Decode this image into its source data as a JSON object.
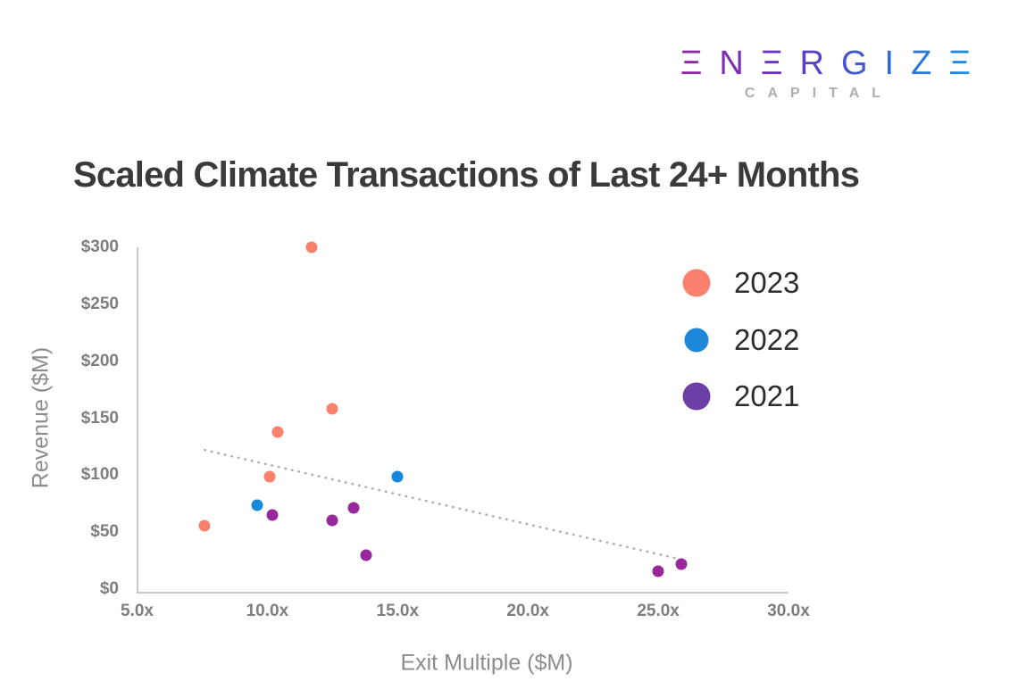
{
  "logo": {
    "brand": "ΞNΞRGIZΞ",
    "subbrand": "CAPITAL",
    "gradient": [
      "#A0249C",
      "#1B98E8"
    ],
    "subbrand_color": "#ADADAD"
  },
  "title": "Scaled Climate Transactions of Last 24+ Months",
  "chart_data": {
    "type": "scatter",
    "title": "Scaled Climate Transactions of Last 24+ Months",
    "xlabel": "Exit Multiple ($M)",
    "ylabel": "Revenue ($M)",
    "xlim": [
      5,
      30
    ],
    "ylim": [
      0,
      300
    ],
    "x_ticks": [
      "5.0x",
      "10.0x",
      "15.0x",
      "20.0x",
      "25.0x",
      "30.0x"
    ],
    "x_tick_values": [
      5,
      10,
      15,
      20,
      25,
      30
    ],
    "y_ticks": [
      "$0",
      "$50",
      "$100",
      "$150",
      "$200",
      "$250",
      "$300"
    ],
    "y_tick_values": [
      0,
      50,
      100,
      150,
      200,
      250,
      300
    ],
    "grid": false,
    "legend_position": "upper right",
    "series": [
      {
        "name": "2023",
        "color": "#F9816D",
        "points": [
          [
            11.7,
            300
          ],
          [
            12.5,
            158
          ],
          [
            10.4,
            138
          ],
          [
            10.1,
            99
          ],
          [
            7.6,
            56
          ]
        ]
      },
      {
        "name": "2022",
        "color": "#1787DB",
        "points": [
          [
            15.0,
            99
          ],
          [
            9.6,
            74
          ]
        ]
      },
      {
        "name": "2021",
        "color": "#98279C",
        "points": [
          [
            10.2,
            65
          ],
          [
            12.5,
            60
          ],
          [
            13.3,
            71
          ],
          [
            13.8,
            30
          ],
          [
            25.0,
            16
          ],
          [
            25.9,
            22
          ]
        ]
      }
    ],
    "trendline": {
      "style": "dotted",
      "color": "#AFAFAF",
      "from": [
        7.6,
        122
      ],
      "to": [
        25.7,
        27
      ]
    }
  },
  "legend": {
    "items": [
      {
        "label": "2023",
        "color": "#F9816D"
      },
      {
        "label": "2022",
        "color": "#1D87D8"
      },
      {
        "label": "2021",
        "color": "#6B3FA5"
      }
    ]
  }
}
